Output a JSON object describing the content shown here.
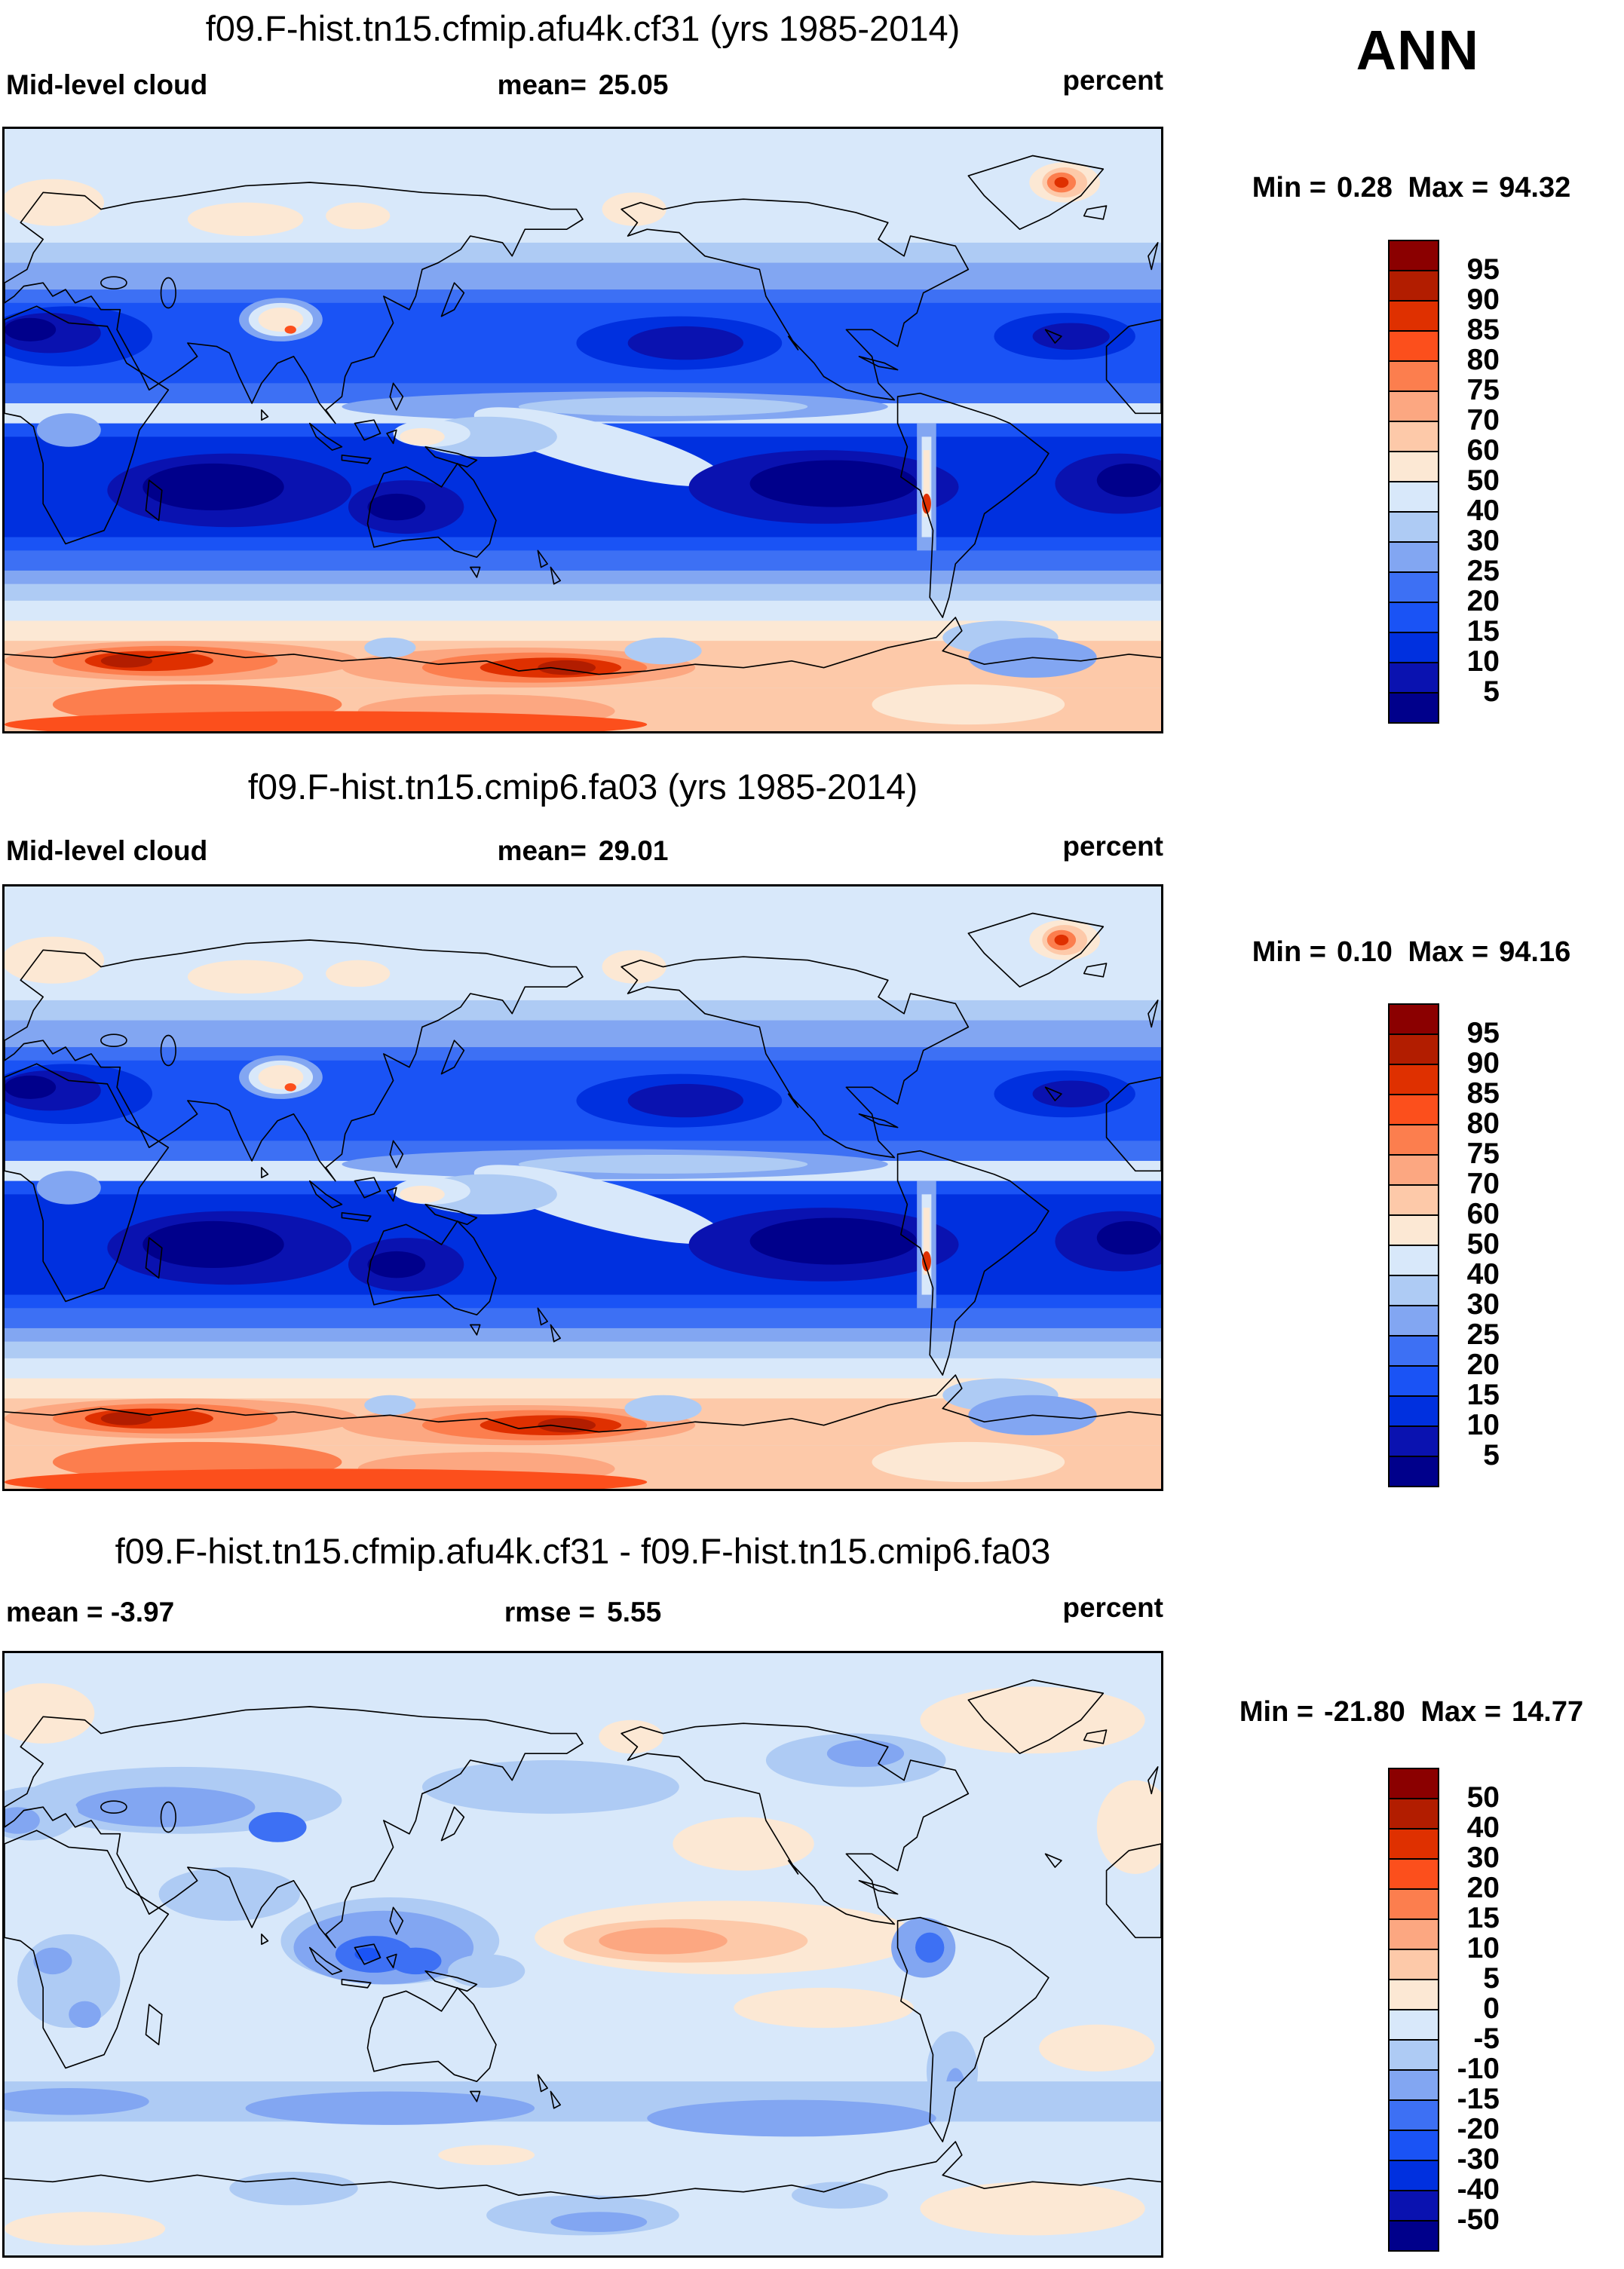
{
  "header": {
    "season_label": "ANN"
  },
  "panels": [
    {
      "title": "f09.F-hist.tn15.cfmip.afu4k.cf31 (yrs 1985-2014)",
      "left_label": "Mid-level cloud",
      "left_value": "",
      "center_label": "mean=",
      "center_value": "25.05",
      "units_label": "percent",
      "min_label": "Min =",
      "min_value": "0.28",
      "max_label": "Max =",
      "max_value": "94.32",
      "colorbar": {
        "tick_labels": [
          "95",
          "90",
          "85",
          "80",
          "75",
          "70",
          "60",
          "50",
          "40",
          "30",
          "25",
          "20",
          "15",
          "10",
          "5"
        ],
        "colors": [
          "#8B0000",
          "#B21D00",
          "#DF3000",
          "#FC4F1C",
          "#FC7E4E",
          "#FCA781",
          "#FDC9A9",
          "#FCE8D4",
          "#D8E8FA",
          "#AECBF4",
          "#82A6F2",
          "#3D70F4",
          "#1A53F5",
          "#0030DF",
          "#0A12B0",
          "#00008B"
        ]
      }
    },
    {
      "title": "f09.F-hist.tn15.cmip6.fa03 (yrs 1985-2014)",
      "left_label": "Mid-level cloud",
      "left_value": "",
      "center_label": "mean=",
      "center_value": "29.01",
      "units_label": "percent",
      "min_label": "Min =",
      "min_value": "0.10",
      "max_label": "Max =",
      "max_value": "94.16",
      "colorbar": {
        "tick_labels": [
          "95",
          "90",
          "85",
          "80",
          "75",
          "70",
          "60",
          "50",
          "40",
          "30",
          "25",
          "20",
          "15",
          "10",
          "5"
        ],
        "colors": [
          "#8B0000",
          "#B21D00",
          "#DF3000",
          "#FC4F1C",
          "#FC7E4E",
          "#FCA781",
          "#FDC9A9",
          "#FCE8D4",
          "#D8E8FA",
          "#AECBF4",
          "#82A6F2",
          "#3D70F4",
          "#1A53F5",
          "#0030DF",
          "#0A12B0",
          "#00008B"
        ]
      }
    },
    {
      "title": "f09.F-hist.tn15.cfmip.afu4k.cf31 - f09.F-hist.tn15.cmip6.fa03",
      "left_label": "mean =",
      "left_value": "-3.97",
      "center_label": "rmse =",
      "center_value": "5.55",
      "units_label": "percent",
      "min_label": "Min =",
      "min_value": "-21.80",
      "max_label": "Max =",
      "max_value": "14.77",
      "colorbar": {
        "tick_labels": [
          "50",
          "40",
          "30",
          "20",
          "15",
          "10",
          "5",
          "0",
          "-5",
          "-10",
          "-15",
          "-20",
          "-30",
          "-40",
          "-50"
        ],
        "colors": [
          "#8B0000",
          "#B21D00",
          "#DF3000",
          "#FC4F1C",
          "#FC7E4E",
          "#FCA781",
          "#FDC9A9",
          "#FCE8D4",
          "#D8E8FA",
          "#AECBF4",
          "#82A6F2",
          "#3D70F4",
          "#1A53F5",
          "#0030DF",
          "#0A12B0",
          "#00008B"
        ]
      }
    }
  ],
  "chart_data": [
    {
      "type": "heatmap",
      "title": "f09.F-hist.tn15.cfmip.afu4k.cf31 (yrs 1985-2014)",
      "variable": "Mid-level cloud",
      "season": "ANN",
      "units": "percent",
      "mean": 25.05,
      "min": 0.28,
      "max": 94.32,
      "projection": "global lat-lon map, Pacific-centered (0-360E), coastlines overlaid",
      "contour_levels": [
        5,
        10,
        15,
        20,
        25,
        30,
        40,
        50,
        60,
        70,
        75,
        80,
        85,
        90,
        95
      ],
      "palette_low_to_high": [
        "#00008B",
        "#0A12B0",
        "#0030DF",
        "#1A53F5",
        "#3D70F4",
        "#82A6F2",
        "#AECBF4",
        "#D8E8FA",
        "#FCE8D4",
        "#FDC9A9",
        "#FCA781",
        "#FC7E4E",
        "#FC4F1C",
        "#DF3000",
        "#B21D00",
        "#8B0000"
      ],
      "legend_position": "right",
      "notable_features": "low cloud fraction (dark blue) over subtropical oceans and N Africa/Arabia; high values (orange/red) over Antarctica ~60-90S, Greenland interior, Tibetan Plateau edge and Andes"
    },
    {
      "type": "heatmap",
      "title": "f09.F-hist.tn15.cmip6.fa03 (yrs 1985-2014)",
      "variable": "Mid-level cloud",
      "season": "ANN",
      "units": "percent",
      "mean": 29.01,
      "min": 0.1,
      "max": 94.16,
      "projection": "global lat-lon map, Pacific-centered (0-360E), coastlines overlaid",
      "contour_levels": [
        5,
        10,
        15,
        20,
        25,
        30,
        40,
        50,
        60,
        70,
        75,
        80,
        85,
        90,
        95
      ],
      "palette_low_to_high": [
        "#00008B",
        "#0A12B0",
        "#0030DF",
        "#1A53F5",
        "#3D70F4",
        "#82A6F2",
        "#AECBF4",
        "#D8E8FA",
        "#FCE8D4",
        "#FDC9A9",
        "#FCA781",
        "#FC7E4E",
        "#FC4F1C",
        "#DF3000",
        "#B21D00",
        "#8B0000"
      ],
      "legend_position": "right",
      "notable_features": "same spatial pattern as case 1 with slightly higher global mean"
    },
    {
      "type": "heatmap",
      "title": "f09.F-hist.tn15.cfmip.afu4k.cf31 - f09.F-hist.tn15.cmip6.fa03",
      "variable": "Mid-level cloud difference",
      "season": "ANN",
      "units": "percent",
      "mean": -3.97,
      "rmse": 5.55,
      "min": -21.8,
      "max": 14.77,
      "projection": "global lat-lon map, Pacific-centered (0-360E), coastlines overlaid",
      "contour_levels": [
        -50,
        -40,
        -30,
        -20,
        -15,
        -10,
        -5,
        0,
        5,
        10,
        15,
        20,
        30,
        40,
        50
      ],
      "palette_low_to_high": [
        "#00008B",
        "#0A12B0",
        "#0030DF",
        "#1A53F5",
        "#3D70F4",
        "#82A6F2",
        "#AECBF4",
        "#D8E8FA",
        "#FCE8D4",
        "#FDC9A9",
        "#FCA781",
        "#FC7E4E",
        "#FC4F1C",
        "#DF3000",
        "#B21D00",
        "#8B0000"
      ],
      "legend_position": "right",
      "notable_features": "mostly weak negative differences (pale/medium blue); positive patch (peach/orange) in central equatorial Pacific; stronger negatives over Indonesia, Tibet, Peru and southern mid-latitude ocean band"
    }
  ]
}
